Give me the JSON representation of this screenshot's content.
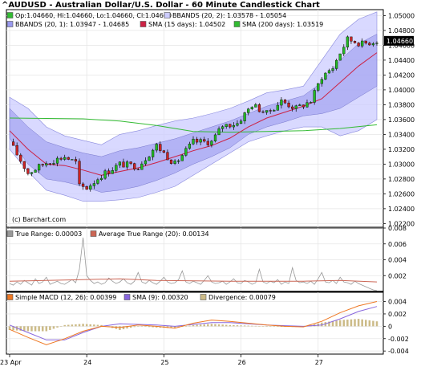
{
  "title": "^AUDUSD - Australian Dollar/U.S. Dollar - 60 Minute Candlestick Chart",
  "watermark": "(c) Barchart.com",
  "colors": {
    "up": "#22bb22",
    "down": "#cc2222",
    "wick": "#000000",
    "bb2_fill": "#ccccff",
    "bb1_fill": "#9999ee",
    "sma15": "#cc2244",
    "sma200": "#33bb33",
    "atr": "#999999",
    "atr_avg": "#cc6655",
    "macd": "#ee7722",
    "macd_sig": "#8866dd",
    "divergence": "#ccbb88"
  },
  "chart_data": [
    {
      "type": "candlestick",
      "title": "^AUDUSD - Australian Dollar/U.S. Dollar - 60 Minute Candlestick Chart",
      "legend": [
        {
          "key": "ohlc",
          "text": "Op:1.04660, Hi:1.04660, Lo:1.04660, Cl:1.04660",
          "color": "#33bb33"
        },
        {
          "key": "bb2",
          "text": "BBANDS (20, 2): 1.03578 - 1.05054",
          "color": "#ccccff"
        },
        {
          "key": "bb1",
          "text": "BBANDS (20, 1): 1.03947 - 1.04685",
          "color": "#9999ee"
        },
        {
          "key": "sma15",
          "text": "SMA (15 days): 1.04502",
          "color": "#cc2244"
        },
        {
          "key": "sma200",
          "text": "SMA (200 days): 1.03519",
          "color": "#33bb33"
        }
      ],
      "last_price": "1.04660",
      "ylim": [
        1.0215,
        1.0508
      ],
      "y_ticks": [
        "1.02200",
        "1.02400",
        "1.02600",
        "1.02800",
        "1.03000",
        "1.03200",
        "1.03400",
        "1.03600",
        "1.03800",
        "1.04000",
        "1.04200",
        "1.04400",
        "1.04600",
        "1.04800",
        "1.05000"
      ],
      "x_ticks": [
        {
          "label": "23 Apr",
          "bar": 0
        },
        {
          "label": "24",
          "bar": 21
        },
        {
          "label": "25",
          "bar": 42
        },
        {
          "label": "26",
          "bar": 63
        },
        {
          "label": "27",
          "bar": 84
        }
      ],
      "close_path": [
        [
          0,
          1.033
        ],
        [
          5,
          1.0288
        ],
        [
          10,
          1.0302
        ],
        [
          15,
          1.031
        ],
        [
          18,
          1.0302
        ],
        [
          19,
          1.027
        ],
        [
          21,
          1.0268
        ],
        [
          25,
          1.0285
        ],
        [
          30,
          1.03
        ],
        [
          35,
          1.0297
        ],
        [
          40,
          1.0325
        ],
        [
          45,
          1.03
        ],
        [
          50,
          1.033
        ],
        [
          55,
          1.033
        ],
        [
          58,
          1.0352
        ],
        [
          62,
          1.0355
        ],
        [
          66,
          1.038
        ],
        [
          70,
          1.0368
        ],
        [
          74,
          1.0385
        ],
        [
          78,
          1.0375
        ],
        [
          82,
          1.0385
        ],
        [
          85,
          1.0418
        ],
        [
          88,
          1.043
        ],
        [
          90,
          1.045
        ],
        [
          92,
          1.0468
        ],
        [
          96,
          1.0462
        ],
        [
          100,
          1.0466
        ]
      ],
      "sma15": [
        [
          0,
          1.0345
        ],
        [
          5,
          1.032
        ],
        [
          10,
          1.03
        ],
        [
          15,
          1.0298
        ],
        [
          20,
          1.0292
        ],
        [
          25,
          1.0285
        ],
        [
          30,
          1.029
        ],
        [
          35,
          1.0295
        ],
        [
          40,
          1.0302
        ],
        [
          45,
          1.031
        ],
        [
          50,
          1.0318
        ],
        [
          55,
          1.0325
        ],
        [
          60,
          1.0335
        ],
        [
          65,
          1.035
        ],
        [
          70,
          1.0362
        ],
        [
          75,
          1.037
        ],
        [
          80,
          1.0378
        ],
        [
          85,
          1.0388
        ],
        [
          90,
          1.041
        ],
        [
          95,
          1.0432
        ],
        [
          100,
          1.045
        ]
      ],
      "sma200": [
        [
          0,
          1.0362
        ],
        [
          20,
          1.0361
        ],
        [
          30,
          1.0358
        ],
        [
          40,
          1.0352
        ],
        [
          50,
          1.0344
        ],
        [
          60,
          1.0343
        ],
        [
          70,
          1.0344
        ],
        [
          80,
          1.0345
        ],
        [
          90,
          1.0348
        ],
        [
          100,
          1.0353
        ]
      ],
      "bb2_upper": [
        [
          0,
          1.039
        ],
        [
          5,
          1.0375
        ],
        [
          10,
          1.035
        ],
        [
          15,
          1.0338
        ],
        [
          20,
          1.0332
        ],
        [
          25,
          1.0326
        ],
        [
          30,
          1.034
        ],
        [
          35,
          1.0345
        ],
        [
          40,
          1.0352
        ],
        [
          45,
          1.0358
        ],
        [
          50,
          1.0362
        ],
        [
          55,
          1.0368
        ],
        [
          60,
          1.0375
        ],
        [
          65,
          1.0385
        ],
        [
          70,
          1.0396
        ],
        [
          75,
          1.04
        ],
        [
          80,
          1.0405
        ],
        [
          85,
          1.044
        ],
        [
          90,
          1.0475
        ],
        [
          95,
          1.0495
        ],
        [
          100,
          1.0505
        ]
      ],
      "bb2_lower": [
        [
          0,
          1.032
        ],
        [
          5,
          1.029
        ],
        [
          10,
          1.0265
        ],
        [
          15,
          1.0258
        ],
        [
          20,
          1.025
        ],
        [
          25,
          1.025
        ],
        [
          30,
          1.0252
        ],
        [
          35,
          1.0255
        ],
        [
          40,
          1.0262
        ],
        [
          45,
          1.027
        ],
        [
          50,
          1.0285
        ],
        [
          55,
          1.03
        ],
        [
          60,
          1.0315
        ],
        [
          65,
          1.033
        ],
        [
          70,
          1.0338
        ],
        [
          75,
          1.0345
        ],
        [
          80,
          1.035
        ],
        [
          85,
          1.035
        ],
        [
          90,
          1.0338
        ],
        [
          95,
          1.0345
        ],
        [
          100,
          1.036
        ]
      ],
      "bb1_upper": [
        [
          0,
          1.0375
        ],
        [
          5,
          1.035
        ],
        [
          10,
          1.033
        ],
        [
          15,
          1.0322
        ],
        [
          20,
          1.0315
        ],
        [
          25,
          1.031
        ],
        [
          30,
          1.0318
        ],
        [
          35,
          1.0322
        ],
        [
          40,
          1.0328
        ],
        [
          45,
          1.0334
        ],
        [
          50,
          1.0342
        ],
        [
          55,
          1.035
        ],
        [
          60,
          1.0358
        ],
        [
          65,
          1.0368
        ],
        [
          70,
          1.0378
        ],
        [
          75,
          1.0385
        ],
        [
          80,
          1.0392
        ],
        [
          85,
          1.041
        ],
        [
          90,
          1.044
        ],
        [
          95,
          1.0462
        ],
        [
          100,
          1.0475
        ]
      ],
      "bb1_lower": [
        [
          0,
          1.0335
        ],
        [
          5,
          1.03
        ],
        [
          10,
          1.028
        ],
        [
          15,
          1.0276
        ],
        [
          20,
          1.027
        ],
        [
          25,
          1.0262
        ],
        [
          30,
          1.0265
        ],
        [
          35,
          1.027
        ],
        [
          40,
          1.0278
        ],
        [
          45,
          1.0288
        ],
        [
          50,
          1.03
        ],
        [
          55,
          1.031
        ],
        [
          60,
          1.0322
        ],
        [
          65,
          1.034
        ],
        [
          70,
          1.035
        ],
        [
          75,
          1.0357
        ],
        [
          80,
          1.0365
        ],
        [
          85,
          1.0368
        ],
        [
          90,
          1.0375
        ],
        [
          95,
          1.039
        ],
        [
          100,
          1.0405
        ]
      ]
    },
    {
      "type": "line",
      "legend": [
        {
          "key": "tr",
          "text": "True Range: 0.00003",
          "color": "#999999"
        },
        {
          "key": "atr",
          "text": "Average True Range (20): 0.00134",
          "color": "#cc6655"
        }
      ],
      "ylim": [
        0,
        0.008
      ],
      "y_ticks": [
        "0.008",
        "0.006",
        "0.004",
        "0.002"
      ],
      "true_range": [
        0.001,
        0.0008,
        0.0012,
        0.0009,
        0.0014,
        0.0011,
        0.0008,
        0.0016,
        0.001,
        0.0012,
        0.0018,
        0.0009,
        0.0011,
        0.0013,
        0.001,
        0.0009,
        0.0012,
        0.0015,
        0.0011,
        0.0028,
        0.0068,
        0.002,
        0.0014,
        0.001,
        0.0012,
        0.0009,
        0.0011,
        0.0017,
        0.0013,
        0.001,
        0.0012,
        0.0016,
        0.0011,
        0.0009,
        0.0013,
        0.0024,
        0.0012,
        0.001,
        0.0014,
        0.0011,
        0.0009,
        0.0013,
        0.0018,
        0.0012,
        0.001,
        0.0011,
        0.0015,
        0.0026,
        0.0012,
        0.001,
        0.0013,
        0.0011,
        0.0009,
        0.0014,
        0.002,
        0.0012,
        0.001,
        0.0011,
        0.0013,
        0.0009,
        0.0012,
        0.0016,
        0.0011,
        0.001,
        0.0014,
        0.0012,
        0.0009,
        0.0011,
        0.0028,
        0.0012,
        0.001,
        0.0013,
        0.0011,
        0.0015,
        0.0009,
        0.0012,
        0.001,
        0.003,
        0.0014,
        0.0011,
        0.0012,
        0.001,
        0.0013,
        0.0009,
        0.0016,
        0.0024,
        0.0012,
        0.0011,
        0.0014,
        0.001,
        0.0018,
        0.0012,
        0.0011,
        0.0009,
        0.0013,
        0.001,
        0.0008,
        0.0006,
        0.0004,
        0.0002,
        0.0001
      ],
      "avg_true_range": [
        [
          0,
          0.0013
        ],
        [
          20,
          0.0015
        ],
        [
          30,
          0.0016
        ],
        [
          40,
          0.0014
        ],
        [
          60,
          0.0013
        ],
        [
          80,
          0.0013
        ],
        [
          90,
          0.0014
        ],
        [
          100,
          0.0012
        ]
      ]
    },
    {
      "type": "line",
      "legend": [
        {
          "key": "macd",
          "text": "Simple MACD (12, 26): 0.00399",
          "color": "#ee7722"
        },
        {
          "key": "sig",
          "text": "SMA (9): 0.00320",
          "color": "#8866dd"
        },
        {
          "key": "div",
          "text": "Divergence: 0.00079",
          "color": "#ccbb88"
        }
      ],
      "ylim": [
        -0.0045,
        0.0055
      ],
      "y_ticks": [
        "0.004",
        "0.002",
        "0",
        "-0.002",
        "-0.004"
      ],
      "macd": [
        [
          0,
          -0.0005
        ],
        [
          5,
          -0.0018
        ],
        [
          10,
          -0.003
        ],
        [
          15,
          -0.002
        ],
        [
          20,
          -0.0008
        ],
        [
          25,
          0.0
        ],
        [
          30,
          -0.0002
        ],
        [
          35,
          0.0002
        ],
        [
          40,
          0.0
        ],
        [
          45,
          -0.0003
        ],
        [
          50,
          0.0005
        ],
        [
          55,
          0.001
        ],
        [
          60,
          0.0008
        ],
        [
          65,
          0.0005
        ],
        [
          70,
          0.0002
        ],
        [
          75,
          0.0
        ],
        [
          80,
          -0.0001
        ],
        [
          85,
          0.0008
        ],
        [
          90,
          0.0022
        ],
        [
          95,
          0.0033
        ],
        [
          100,
          0.004
        ]
      ],
      "signal": [
        [
          0,
          0.0002
        ],
        [
          5,
          -0.001
        ],
        [
          10,
          -0.0022
        ],
        [
          15,
          -0.0022
        ],
        [
          20,
          -0.001
        ],
        [
          25,
          0.0
        ],
        [
          30,
          0.0004
        ],
        [
          35,
          0.0003
        ],
        [
          40,
          0.0002
        ],
        [
          45,
          0.0
        ],
        [
          50,
          0.0003
        ],
        [
          55,
          0.0006
        ],
        [
          60,
          0.0006
        ],
        [
          65,
          0.0004
        ],
        [
          70,
          0.0002
        ],
        [
          75,
          0.0001
        ],
        [
          80,
          0.0
        ],
        [
          85,
          0.0002
        ],
        [
          90,
          0.0012
        ],
        [
          95,
          0.0024
        ],
        [
          100,
          0.0032
        ]
      ],
      "divergence": [
        [
          0,
          -0.0006
        ],
        [
          5,
          -0.0008
        ],
        [
          10,
          -0.0008
        ],
        [
          15,
          0.0002
        ],
        [
          20,
          0.0004
        ],
        [
          25,
          0.0002
        ],
        [
          30,
          -0.0006
        ],
        [
          35,
          0.0
        ],
        [
          40,
          -0.0002
        ],
        [
          45,
          -0.0003
        ],
        [
          50,
          0.0002
        ],
        [
          55,
          0.0004
        ],
        [
          60,
          0.0002
        ],
        [
          65,
          0.0001
        ],
        [
          70,
          0.0
        ],
        [
          75,
          -0.0001
        ],
        [
          80,
          -0.0001
        ],
        [
          85,
          0.0006
        ],
        [
          90,
          0.001
        ],
        [
          95,
          0.0012
        ],
        [
          100,
          0.0008
        ]
      ]
    }
  ]
}
